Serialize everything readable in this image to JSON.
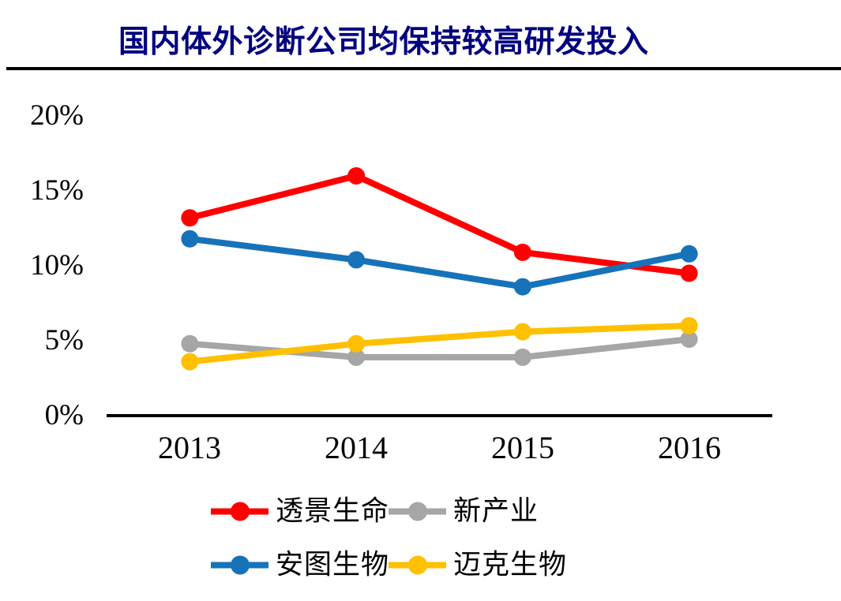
{
  "title": "国内体外诊断公司均保持较高研发投入",
  "chart_data": {
    "type": "line",
    "title": "国内体外诊断公司均保持较高研发投入",
    "categories": [
      "2013",
      "2014",
      "2015",
      "2016"
    ],
    "series": [
      {
        "name": "透景生命",
        "color": "#FF0000",
        "values": [
          13.2,
          16.0,
          10.9,
          9.5
        ]
      },
      {
        "name": "新产业",
        "color": "#A6A6A6",
        "values": [
          4.8,
          3.9,
          3.9,
          5.1
        ]
      },
      {
        "name": "安图生物",
        "color": "#1673B9",
        "values": [
          11.8,
          10.4,
          8.6,
          10.8
        ]
      },
      {
        "name": "迈克生物",
        "color": "#FFC000",
        "values": [
          3.6,
          4.8,
          5.6,
          6.0
        ]
      }
    ],
    "unit": "percent",
    "ylim": [
      0,
      20
    ],
    "ytick_labels": [
      "0%",
      "5%",
      "10%",
      "15%",
      "20%"
    ],
    "xlabel": "",
    "ylabel": "",
    "grid": false,
    "legend_position": "bottom",
    "marker": "circle"
  },
  "colors": {
    "title_text": "#000080",
    "axis_line": "#000000",
    "title_rule": "#000000",
    "background": "#FFFFFF",
    "tick_text": "#000000"
  }
}
